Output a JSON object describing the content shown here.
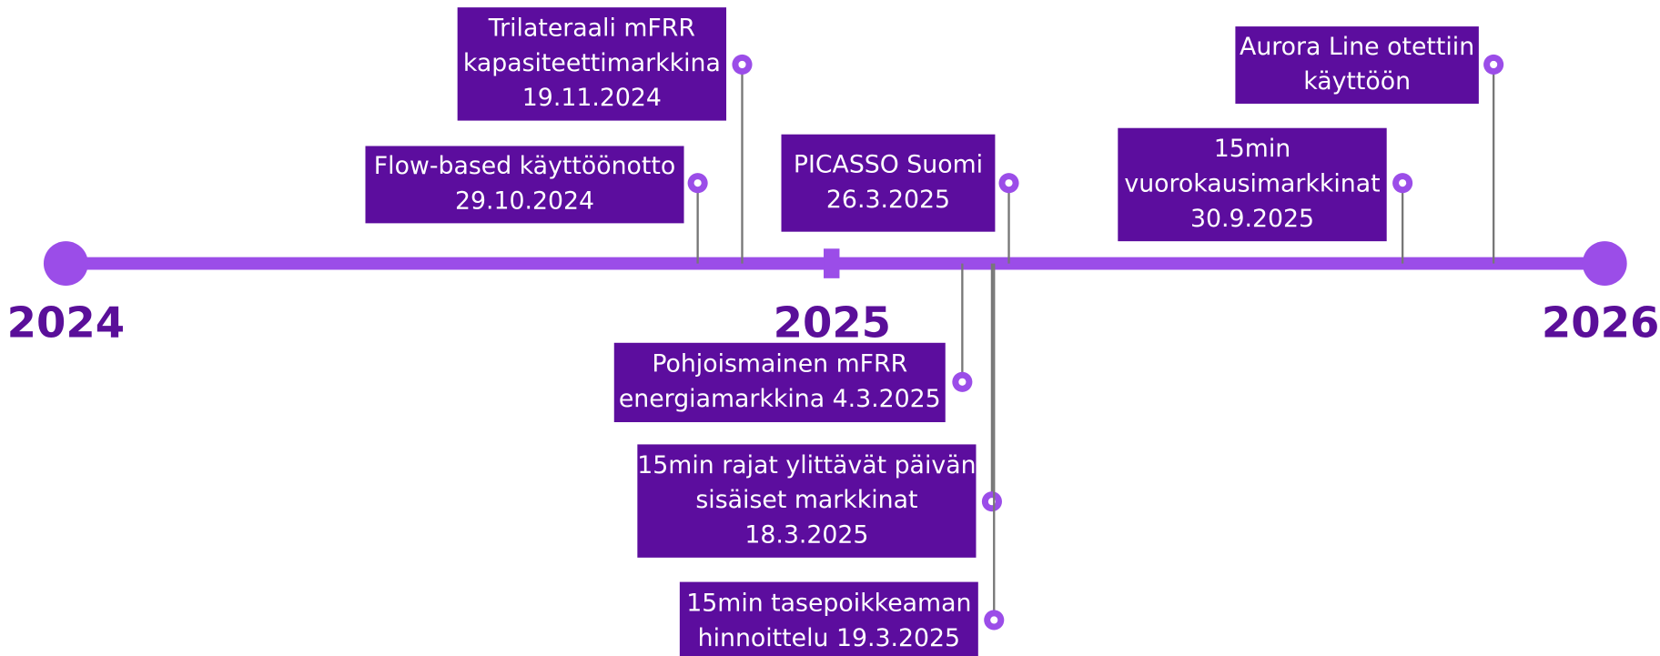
{
  "years": [
    "2024",
    "2025",
    "2026"
  ],
  "events": [
    {
      "lines": [
        "Trilateraali mFRR",
        "kapasiteettimarkkina",
        "19.11.2024"
      ]
    },
    {
      "lines": [
        "Flow-based käyttöönotto",
        "29.10.2024"
      ]
    },
    {
      "lines": [
        "PICASSO Suomi",
        "26.3.2025"
      ]
    },
    {
      "lines": [
        "15min",
        "vuorokausimarkkinat",
        "30.9.2025"
      ]
    },
    {
      "lines": [
        "Aurora Line otettiin",
        "käyttöön"
      ]
    },
    {
      "lines": [
        "Pohjoismainen mFRR",
        "energiamarkkina 4.3.2025"
      ]
    },
    {
      "lines": [
        "15min rajat ylittävät päivän",
        "sisäiset markkinat",
        "18.3.2025"
      ]
    },
    {
      "lines": [
        "15min tasepoikkeaman",
        "hinnoittelu 19.3.2025"
      ]
    }
  ]
}
